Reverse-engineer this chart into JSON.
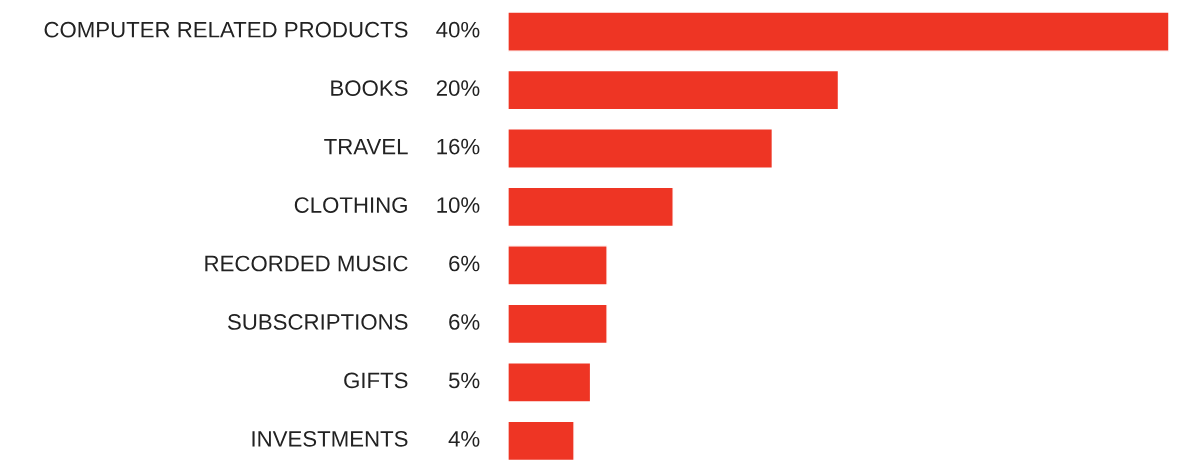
{
  "chart_data": {
    "type": "bar",
    "orientation": "horizontal",
    "categories": [
      "COMPUTER RELATED PRODUCTS",
      "BOOKS",
      "TRAVEL",
      "CLOTHING",
      "RECORDED MUSIC",
      "SUBSCRIPTIONS",
      "GIFTS",
      "INVESTMENTS"
    ],
    "values": [
      40,
      20,
      16,
      10,
      6,
      6,
      5,
      4
    ],
    "value_labels": [
      "40%",
      "20%",
      "16%",
      "10%",
      "6%",
      "6%",
      "5%",
      "4%"
    ],
    "color": "#ee3524"
  }
}
